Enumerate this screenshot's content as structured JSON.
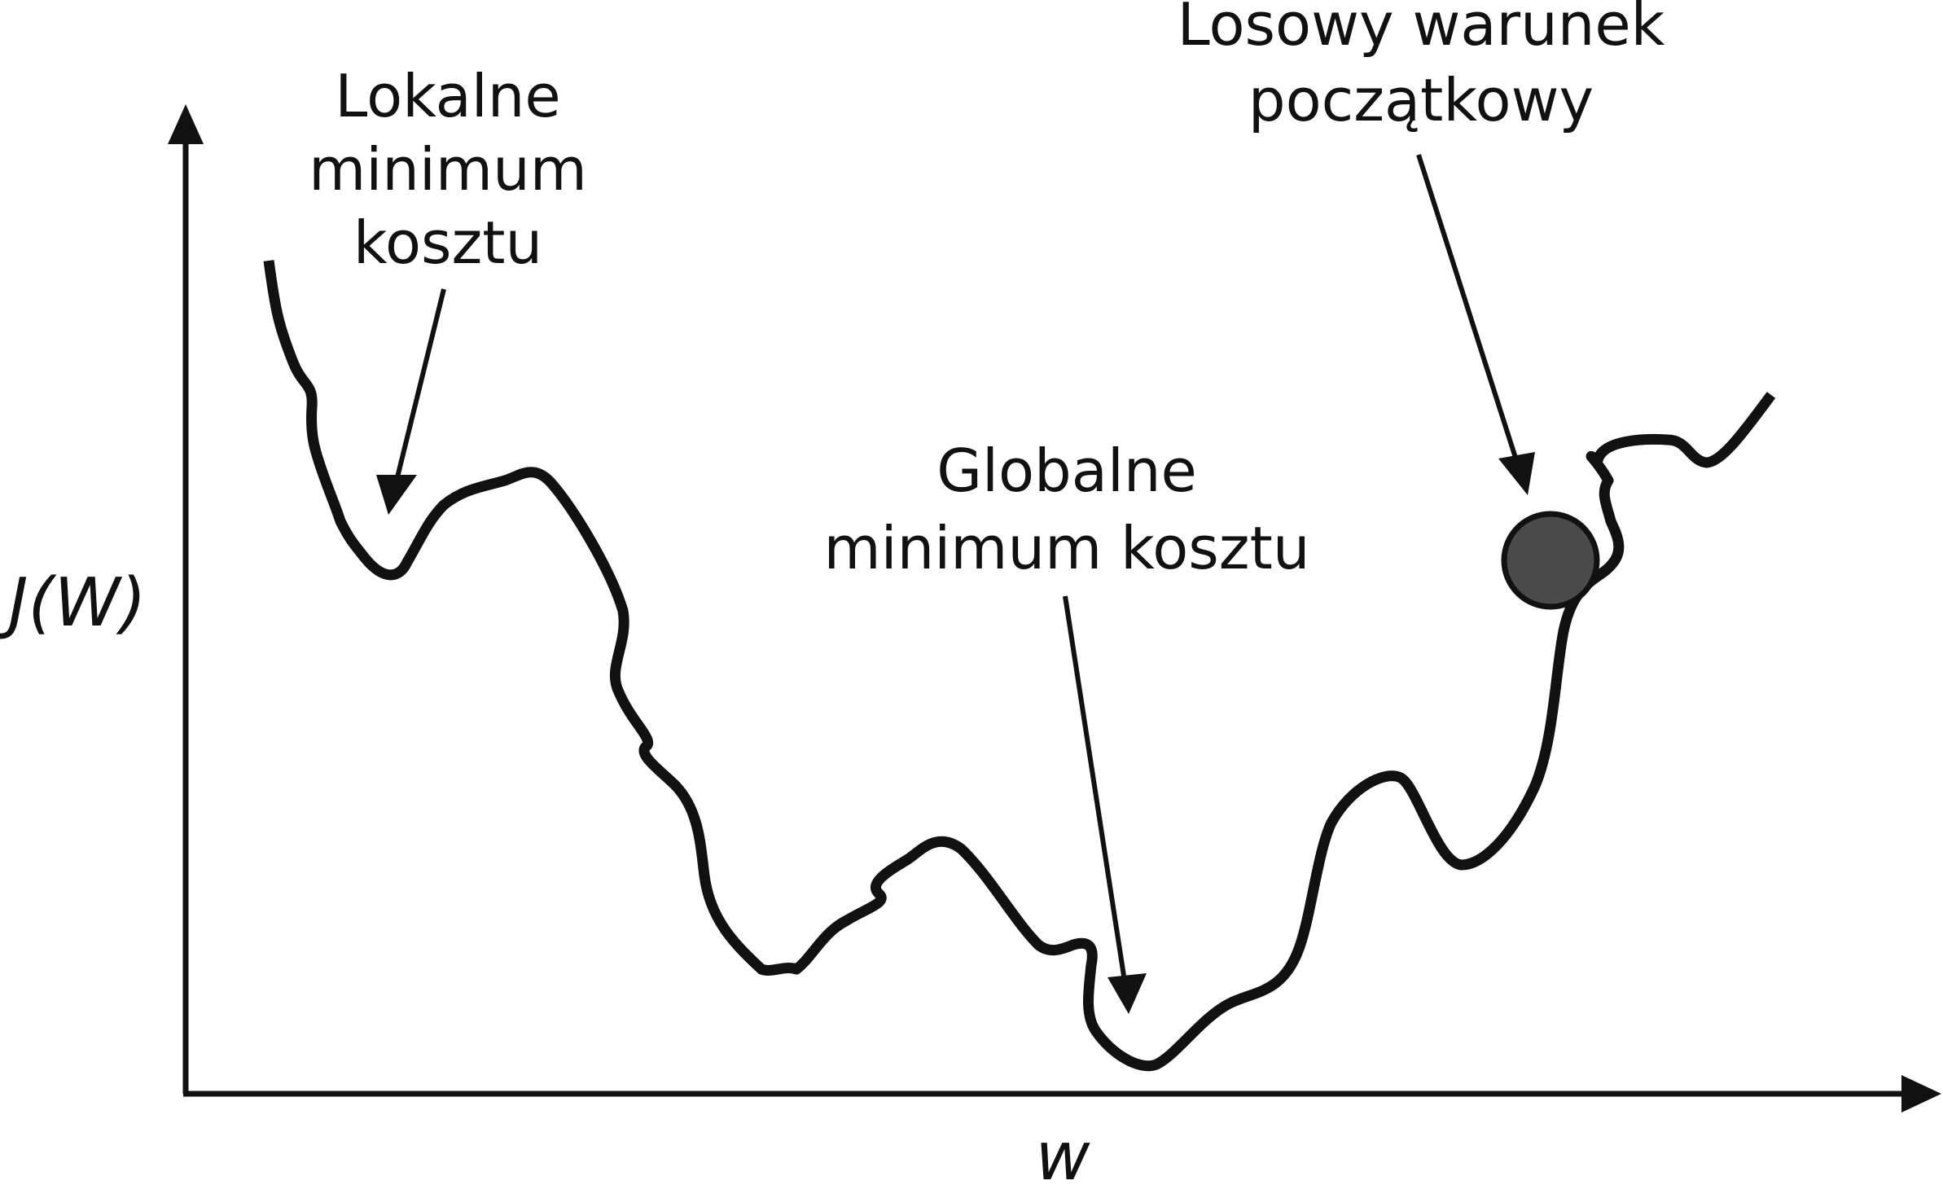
{
  "axes": {
    "y_label": "J(W)",
    "x_label": "w"
  },
  "annotations": {
    "local_minimum": [
      "Lokalne",
      "minimum",
      "kosztu"
    ],
    "global_minimum": [
      "Globalne",
      "minimum kosztu"
    ],
    "random_start": [
      "Losowy warunek",
      "początkowy"
    ]
  },
  "colors": {
    "line": "#111111",
    "ball": "#4a4a4a"
  }
}
